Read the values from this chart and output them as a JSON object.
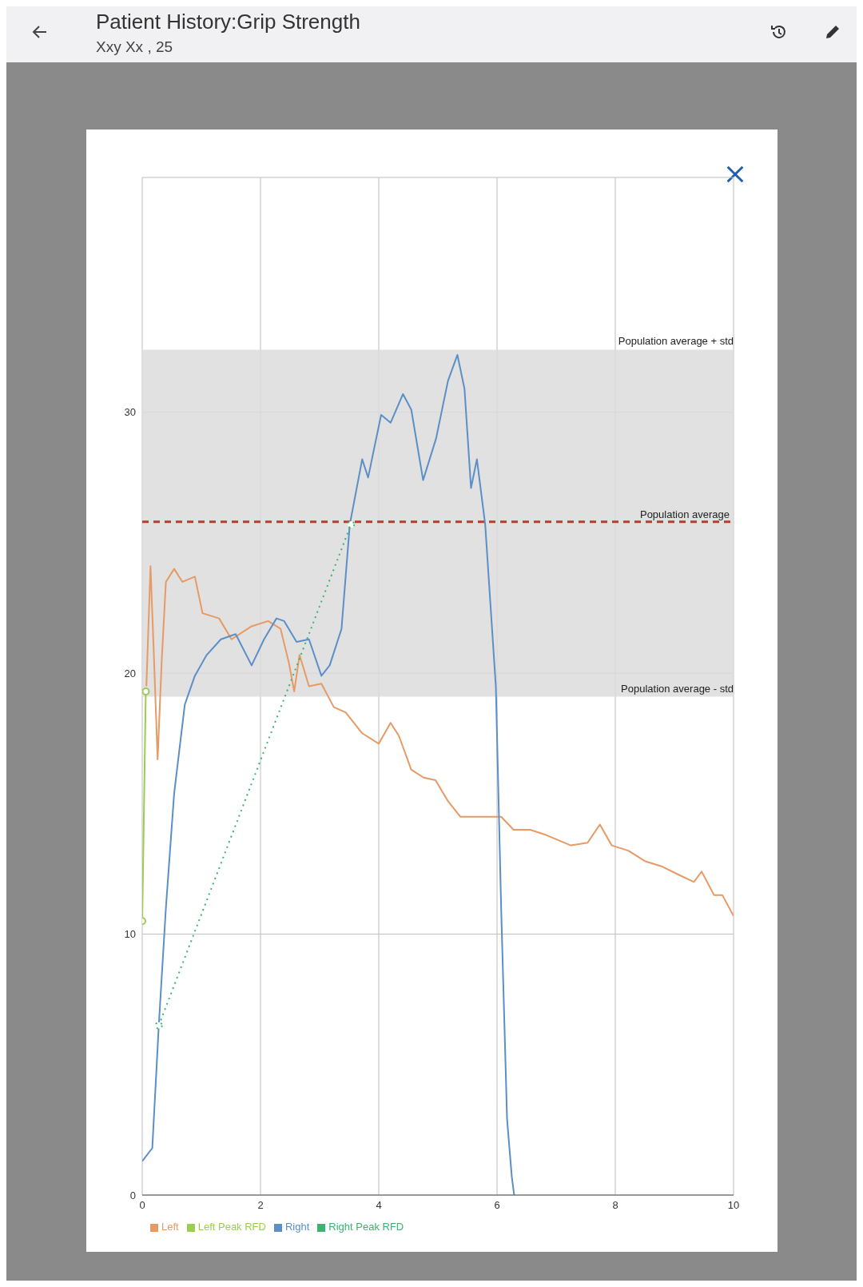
{
  "chart_data": {
    "type": "line",
    "title": "Patient History:Grip Strength",
    "subtitle": "Xxy Xx , 25",
    "xlim": [
      0,
      10
    ],
    "xticks": [
      0,
      2,
      4,
      6,
      8,
      10
    ],
    "ylim": [
      0,
      39
    ],
    "yticks": [
      0,
      10,
      20,
      30
    ],
    "grid": true,
    "legend": "bottom",
    "series": [
      {
        "name": "Left",
        "color": "#e69a66",
        "marker": "none",
        "line_style": "solid",
        "x": [
          0.07,
          0.14,
          0.2,
          0.26,
          0.33,
          0.4,
          0.54,
          0.68,
          0.89,
          1.02,
          1.3,
          1.51,
          1.85,
          2.13,
          2.34,
          2.48,
          2.57,
          2.66,
          2.82,
          3.03,
          3.24,
          3.44,
          3.72,
          4.0,
          4.2,
          4.34,
          4.55,
          4.76,
          4.96,
          5.17,
          5.38,
          5.66,
          5.87,
          6.07,
          6.28,
          6.56,
          6.83,
          7.25,
          7.53,
          7.74,
          7.94,
          8.22,
          8.5,
          8.78,
          9.05,
          9.33,
          9.46,
          9.67,
          9.81,
          10.0
        ],
        "values": [
          19.5,
          24.1,
          20.5,
          16.7,
          20.5,
          23.5,
          24.0,
          23.5,
          23.7,
          22.3,
          22.1,
          21.3,
          21.8,
          22.0,
          21.7,
          20.4,
          19.3,
          20.7,
          19.5,
          19.6,
          18.7,
          18.5,
          17.7,
          17.3,
          18.1,
          17.6,
          16.3,
          16.0,
          15.9,
          15.1,
          14.5,
          14.5,
          14.5,
          14.5,
          14.0,
          14.0,
          13.8,
          13.4,
          13.5,
          14.2,
          13.4,
          13.2,
          12.8,
          12.6,
          12.3,
          12.0,
          12.4,
          11.5,
          11.5,
          10.7
        ]
      },
      {
        "name": "Left Peak RFD",
        "color": "#9acd52",
        "marker": "circle",
        "line_style": "solid",
        "x": [
          0,
          0.06
        ],
        "values": [
          10.5,
          19.3
        ]
      },
      {
        "name": "Right",
        "color": "#5b8fc7",
        "marker": "none",
        "line_style": "solid",
        "x": [
          0,
          0.17,
          0.28,
          0.4,
          0.54,
          0.72,
          0.89,
          1.09,
          1.33,
          1.58,
          1.85,
          2.06,
          2.27,
          2.4,
          2.61,
          2.82,
          3.03,
          3.17,
          3.37,
          3.51,
          3.72,
          3.82,
          4.04,
          4.2,
          4.41,
          4.55,
          4.75,
          4.97,
          5.17,
          5.33,
          5.45,
          5.56,
          5.66,
          5.8,
          5.98,
          6.07,
          6.17,
          6.25,
          6.29
        ],
        "values": [
          1.3,
          1.8,
          6.5,
          11.0,
          15.4,
          18.8,
          19.9,
          20.7,
          21.3,
          21.5,
          20.3,
          21.3,
          22.1,
          22.0,
          21.2,
          21.3,
          19.9,
          20.3,
          21.7,
          25.7,
          28.2,
          27.5,
          29.9,
          29.6,
          30.7,
          30.1,
          27.4,
          29.0,
          31.2,
          32.2,
          30.9,
          27.1,
          28.2,
          25.7,
          19.5,
          11.0,
          2.9,
          0.7,
          0
        ]
      },
      {
        "name": "Right Peak RFD",
        "color": "#3cb371",
        "marker": "circle",
        "line_style": "dotted",
        "x": [
          0.28,
          3.53
        ],
        "values": [
          6.5,
          25.7
        ]
      }
    ],
    "bands": [
      {
        "axis": "y",
        "from": 19.1,
        "to": 32.4,
        "color": "#dcdcdc"
      }
    ],
    "ref_lines": [
      {
        "axis": "y",
        "value": 25.8,
        "label": "Population average",
        "color": "#c0392b",
        "line_style": "dashed"
      }
    ],
    "annotations": [
      {
        "text": "Population average + std",
        "x": 10,
        "y": 32.4
      },
      {
        "text": "Population average - std",
        "x": 10,
        "y": 19.1
      }
    ]
  }
}
